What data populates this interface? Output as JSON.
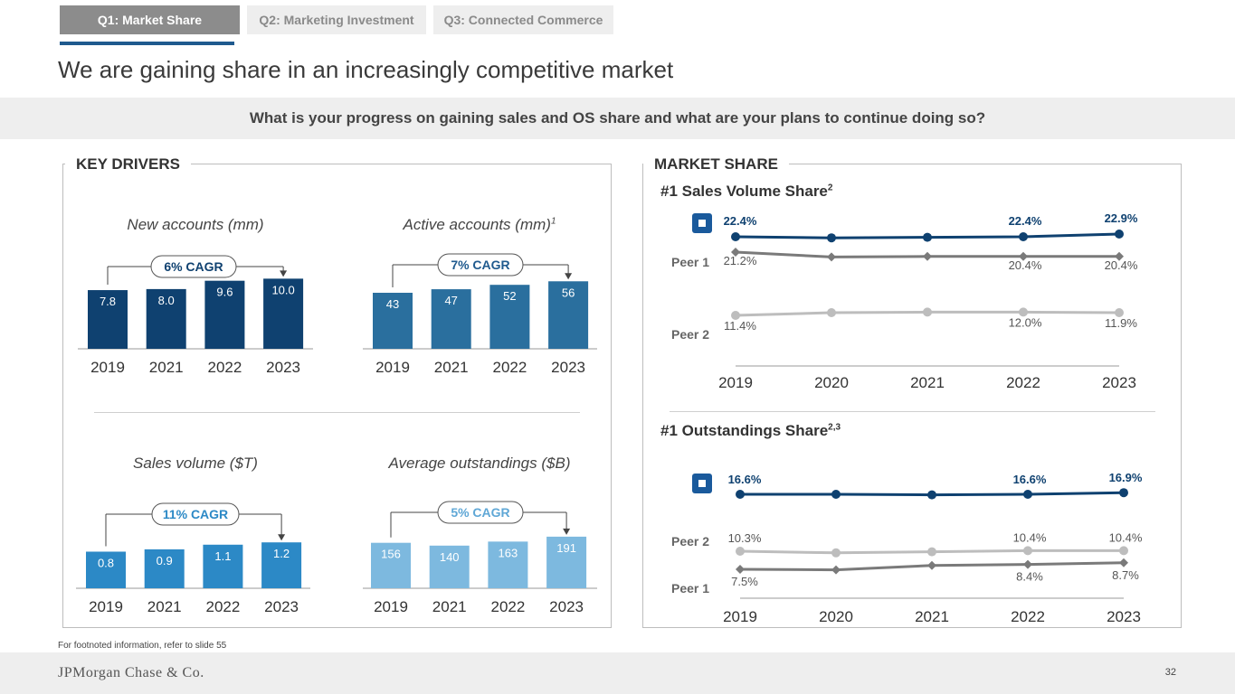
{
  "tabs": [
    {
      "label": "Q1: Market Share"
    },
    {
      "label": "Q2: Marketing Investment"
    },
    {
      "label": "Q3: Connected Commerce"
    }
  ],
  "page_title": "We are gaining share in an increasingly competitive market",
  "question": "What is your progress on gaining sales and OS share and what are your plans to continue doing so?",
  "key_drivers": {
    "title": "KEY DRIVERS"
  },
  "market_share": {
    "title": "MARKET SHARE",
    "sales_title": "#1 Sales Volume Share",
    "sales_sup": "2",
    "os_title": "#1 Outstandings Share",
    "os_sup": "2,3"
  },
  "colors": {
    "navy": "#0f4170",
    "mid_blue": "#2a6f9e",
    "bright_blue": "#2c89c6",
    "light_blue": "#7db9df",
    "dark_gray": "#7a7a7a",
    "light_gray": "#bdbdbd"
  },
  "chart_data": [
    {
      "type": "bar",
      "title": "New accounts (mm)",
      "title_sup": "",
      "categories": [
        "2019",
        "2021",
        "2022",
        "2023"
      ],
      "values": [
        7.8,
        8.0,
        9.6,
        10.0
      ],
      "labels": [
        "7.8",
        "8.0",
        "9.6",
        "10.0"
      ],
      "cagr": "6% CAGR",
      "color": "#0f4170"
    },
    {
      "type": "bar",
      "title": "Active accounts (mm)",
      "title_sup": "1",
      "categories": [
        "2019",
        "2021",
        "2022",
        "2023"
      ],
      "values": [
        43,
        47,
        52,
        56
      ],
      "labels": [
        "43",
        "47",
        "52",
        "56"
      ],
      "cagr": "7% CAGR",
      "color": "#2a6f9e"
    },
    {
      "type": "bar",
      "title": "Sales volume ($T)",
      "title_sup": "",
      "categories": [
        "2019",
        "2021",
        "2022",
        "2023"
      ],
      "values": [
        0.8,
        0.9,
        1.1,
        1.2
      ],
      "labels": [
        "0.8",
        "0.9",
        "1.1",
        "1.2"
      ],
      "cagr": "11% CAGR",
      "color": "#2c89c6"
    },
    {
      "type": "bar",
      "title": "Average outstandings ($B)",
      "title_sup": "",
      "categories": [
        "2019",
        "2021",
        "2022",
        "2023"
      ],
      "values": [
        156,
        140,
        163,
        191
      ],
      "labels": [
        "156",
        "140",
        "163",
        "191"
      ],
      "cagr": "5% CAGR",
      "color": "#7db9df"
    },
    {
      "type": "line",
      "title": "#1 Sales Volume Share",
      "x": [
        "2019",
        "2020",
        "2021",
        "2022",
        "2023"
      ],
      "ylim": [
        10,
        24
      ],
      "series": [
        {
          "name": "JPMorgan Chase",
          "values": [
            22.4,
            22.2,
            22.3,
            22.4,
            22.9
          ],
          "labels": [
            "22.4%",
            "",
            "",
            "22.4%",
            "22.9%"
          ],
          "color": "#0f4170"
        },
        {
          "name": "Peer 1",
          "values": [
            21.2,
            20.3,
            20.4,
            20.4,
            20.4
          ],
          "labels": [
            "21.2%",
            "",
            "",
            "20.4%",
            "20.4%"
          ],
          "color": "#7a7a7a"
        },
        {
          "name": "Peer 2",
          "values": [
            11.4,
            11.9,
            12.0,
            12.0,
            11.9
          ],
          "labels": [
            "11.4%",
            "",
            "",
            "12.0%",
            "11.9%"
          ],
          "color": "#bdbdbd"
        }
      ]
    },
    {
      "type": "line",
      "title": "#1 Outstandings Share",
      "x": [
        "2019",
        "2020",
        "2021",
        "2022",
        "2023"
      ],
      "ylim": [
        7,
        18
      ],
      "series": [
        {
          "name": "JPMorgan Chase",
          "values": [
            16.6,
            16.6,
            16.5,
            16.6,
            16.9
          ],
          "labels": [
            "16.6%",
            "",
            "",
            "16.6%",
            "16.9%"
          ],
          "color": "#0f4170"
        },
        {
          "name": "Peer 2",
          "values": [
            10.3,
            10.0,
            10.2,
            10.4,
            10.4
          ],
          "labels": [
            "10.3%",
            "",
            "",
            "10.4%",
            "10.4%"
          ],
          "color": "#bdbdbd"
        },
        {
          "name": "Peer 1",
          "values": [
            7.5,
            7.4,
            8.2,
            8.4,
            8.7
          ],
          "labels": [
            "7.5%",
            "",
            "",
            "8.4%",
            "8.7%"
          ],
          "color": "#7a7a7a"
        }
      ]
    }
  ],
  "footnote": "For footnoted information, refer to slide 55",
  "footer": {
    "logo_text": "JPMorgan Chase & Co.",
    "page_number": "32"
  }
}
